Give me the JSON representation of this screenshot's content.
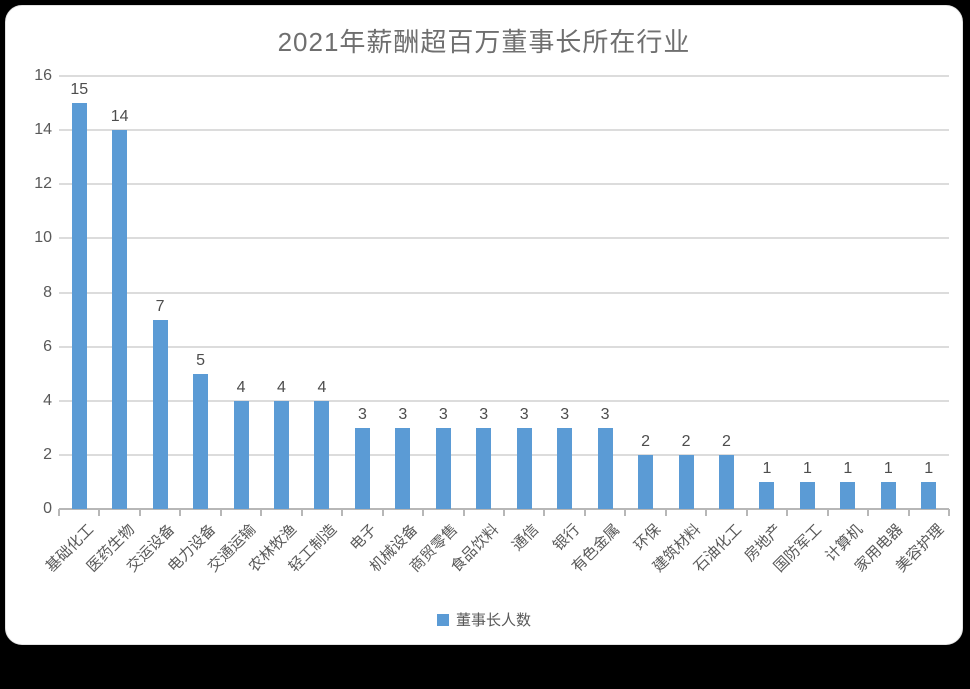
{
  "title": "2021年薪酬超百万董事长所在行业",
  "chart_data": {
    "type": "bar",
    "title": "2021年薪酬超百万董事长所在行业",
    "categories": [
      "基础化工",
      "医药生物",
      "交运设备",
      "电力设备",
      "交通运输",
      "农林牧渔",
      "轻工制造",
      "电子",
      "机械设备",
      "商贸零售",
      "食品饮料",
      "通信",
      "银行",
      "有色金属",
      "环保",
      "建筑材料",
      "石油化工",
      "房地产",
      "国防军工",
      "计算机",
      "家用电器",
      "美容护理"
    ],
    "values": [
      15,
      14,
      7,
      5,
      4,
      4,
      4,
      3,
      3,
      3,
      3,
      3,
      3,
      3,
      2,
      2,
      2,
      1,
      1,
      1,
      1,
      1
    ],
    "series_name": "董事长人数",
    "xlabel": "",
    "ylabel": "",
    "ylim": [
      0,
      16
    ],
    "ytick_step": 2,
    "yticks": [
      0,
      2,
      4,
      6,
      8,
      10,
      12,
      14,
      16
    ],
    "grid": true,
    "legend_position": "bottom",
    "data_labels_shown": true,
    "bar_color": "#5b9bd5",
    "grid_color": "#dcdcdc",
    "axis_color": "#b7b7b7",
    "tick_label_color": "#595959",
    "title_color": "#6f6f6f"
  },
  "legend": {
    "label": "董事长人数",
    "swatch_color": "#5b9bd5"
  }
}
